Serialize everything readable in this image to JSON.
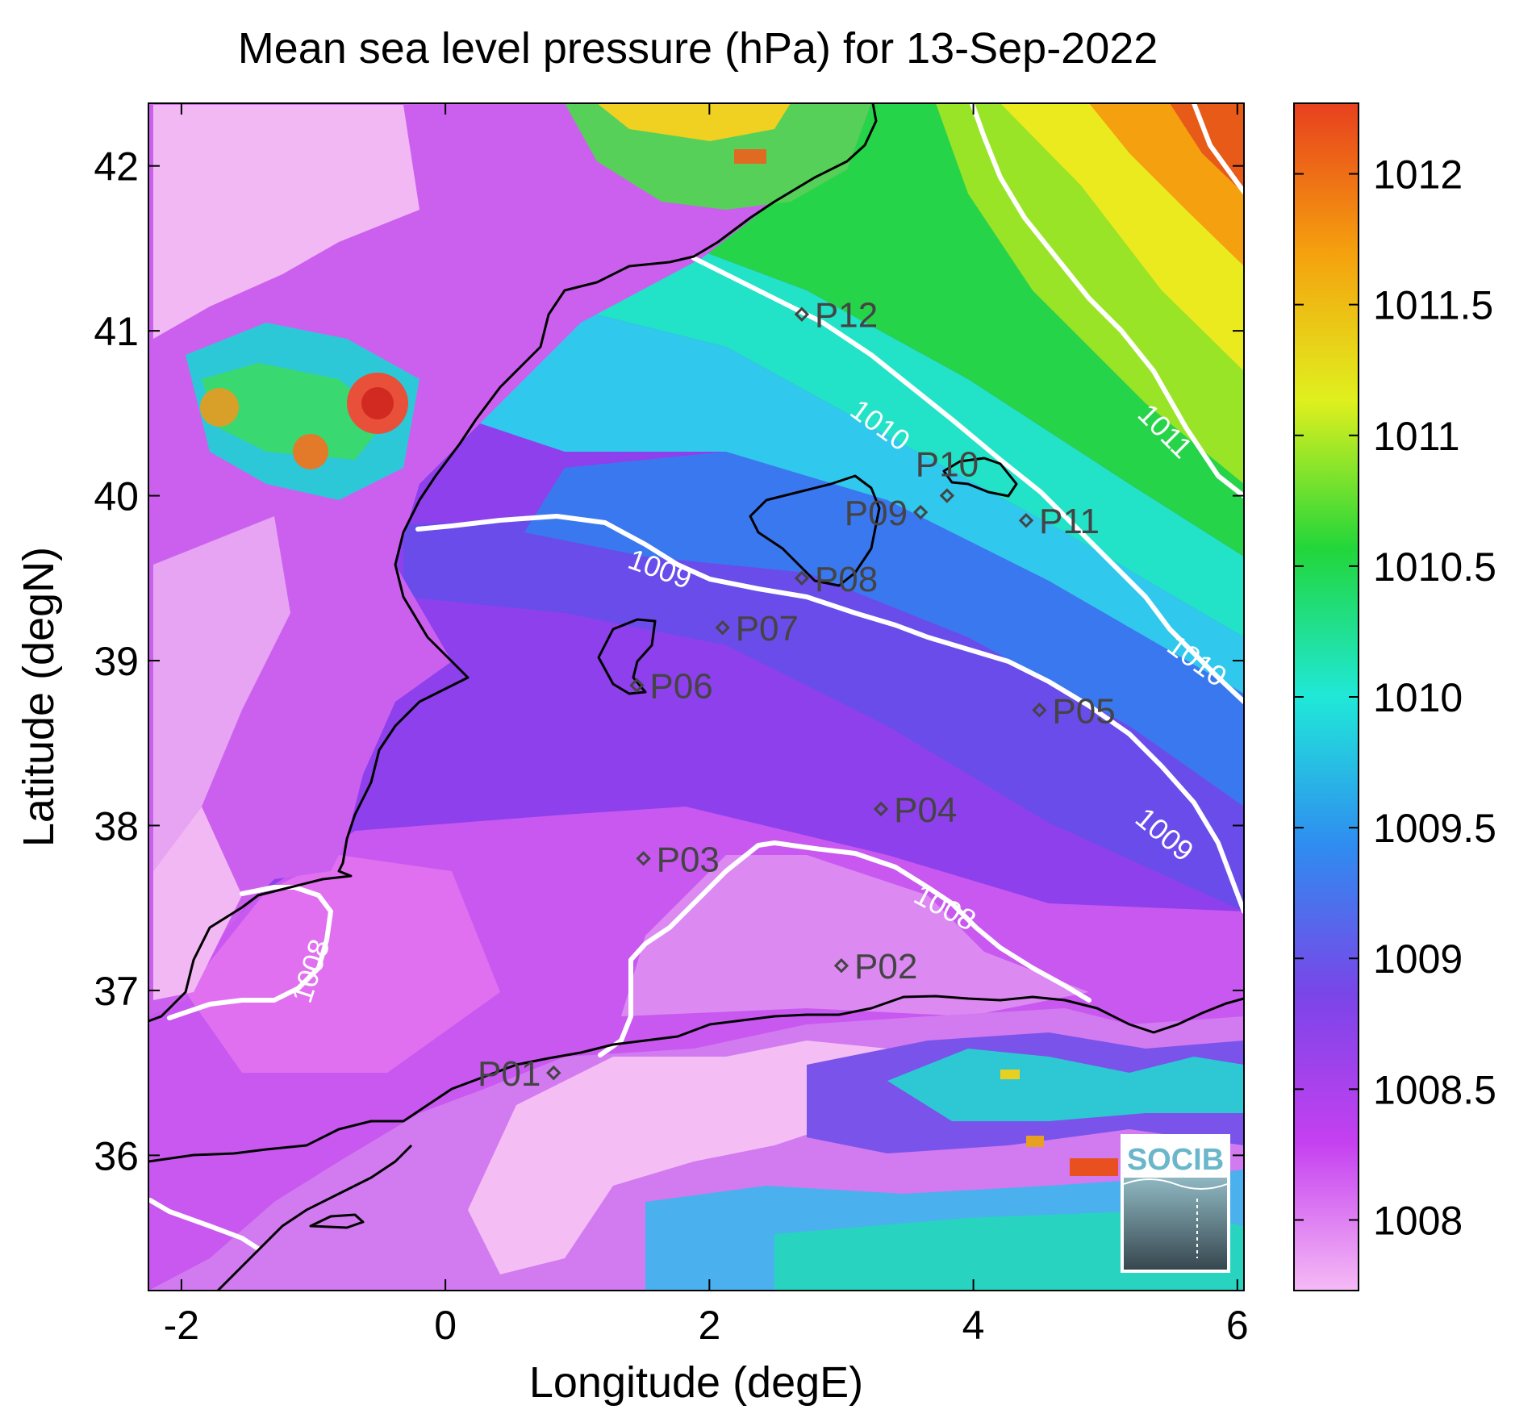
{
  "chart_data": {
    "type": "heatmap",
    "title": "Mean sea level pressure (hPa) for 13-Sep-2022",
    "xlabel": "Longitude (degE)",
    "ylabel": "Latitude (degN)",
    "xlim": [
      -2.25,
      6.05
    ],
    "ylim": [
      35.18,
      42.38
    ],
    "x_ticks": [
      {
        "v": -2,
        "label": "-2"
      },
      {
        "v": 0,
        "label": "0"
      },
      {
        "v": 2,
        "label": "2"
      },
      {
        "v": 4,
        "label": "4"
      },
      {
        "v": 6,
        "label": "6"
      }
    ],
    "y_ticks": [
      {
        "v": 36,
        "label": "36"
      },
      {
        "v": 37,
        "label": "37"
      },
      {
        "v": 38,
        "label": "38"
      },
      {
        "v": 39,
        "label": "39"
      },
      {
        "v": 40,
        "label": "40"
      },
      {
        "v": 41,
        "label": "41"
      },
      {
        "v": 42,
        "label": "42"
      }
    ],
    "colorbar": {
      "range": [
        1007.73,
        1012.27
      ],
      "ticks": [
        {
          "v": 1008,
          "label": "1008"
        },
        {
          "v": 1008.5,
          "label": "1008.5"
        },
        {
          "v": 1009,
          "label": "1009"
        },
        {
          "v": 1009.5,
          "label": "1009.5"
        },
        {
          "v": 1010,
          "label": "1010"
        },
        {
          "v": 1010.5,
          "label": "1010.5"
        },
        {
          "v": 1011,
          "label": "1011"
        },
        {
          "v": 1011.5,
          "label": "1011.5"
        },
        {
          "v": 1012,
          "label": "1012"
        }
      ],
      "colors": [
        "#f5baf5",
        "#c540f0",
        "#7a45e8",
        "#2f8cf0",
        "#20e8d8",
        "#22d63a",
        "#e0f01e",
        "#f5a00e",
        "#e8401e"
      ]
    },
    "contours": [
      {
        "level": 1008,
        "labels": [
          {
            "text": "1008",
            "lon": 3.75,
            "lat": 37.45,
            "rot": 28
          },
          {
            "text": "1008",
            "lon": -0.95,
            "lat": 37.1,
            "rot": -72
          }
        ]
      },
      {
        "level": 1009,
        "labels": [
          {
            "text": "1009",
            "lon": 1.6,
            "lat": 39.5,
            "rot": 20
          },
          {
            "text": "1009",
            "lon": 5.4,
            "lat": 37.9,
            "rot": 40
          }
        ]
      },
      {
        "level": 1010,
        "labels": [
          {
            "text": "1010",
            "lon": 3.25,
            "lat": 40.38,
            "rot": 36
          },
          {
            "text": "1010",
            "lon": 5.65,
            "lat": 38.95,
            "rot": 36
          }
        ]
      },
      {
        "level": 1011,
        "labels": [
          {
            "text": "1011",
            "lon": 5.4,
            "lat": 40.35,
            "rot": 45
          }
        ]
      }
    ],
    "stations": [
      {
        "name": "P01",
        "lon": 0.82,
        "lat": 36.5,
        "label_side": "left"
      },
      {
        "name": "P02",
        "lon": 3.0,
        "lat": 37.15,
        "label_side": "right"
      },
      {
        "name": "P03",
        "lon": 1.5,
        "lat": 37.8,
        "label_side": "right"
      },
      {
        "name": "P04",
        "lon": 3.3,
        "lat": 38.1,
        "label_side": "right"
      },
      {
        "name": "P05",
        "lon": 4.5,
        "lat": 38.7,
        "label_side": "right"
      },
      {
        "name": "P06",
        "lon": 1.45,
        "lat": 38.85,
        "label_side": "right"
      },
      {
        "name": "P07",
        "lon": 2.1,
        "lat": 39.2,
        "label_side": "right"
      },
      {
        "name": "P08",
        "lon": 2.7,
        "lat": 39.5,
        "label_side": "right"
      },
      {
        "name": "P09",
        "lon": 3.6,
        "lat": 39.9,
        "label_side": "left"
      },
      {
        "name": "P10",
        "lon": 3.8,
        "lat": 40.0,
        "label_side": "above"
      },
      {
        "name": "P11",
        "lon": 4.4,
        "lat": 39.85,
        "label_side": "right"
      },
      {
        "name": "P12",
        "lon": 2.7,
        "lat": 41.1,
        "label_side": "right"
      }
    ]
  },
  "logo": {
    "text": "SOCIB"
  }
}
